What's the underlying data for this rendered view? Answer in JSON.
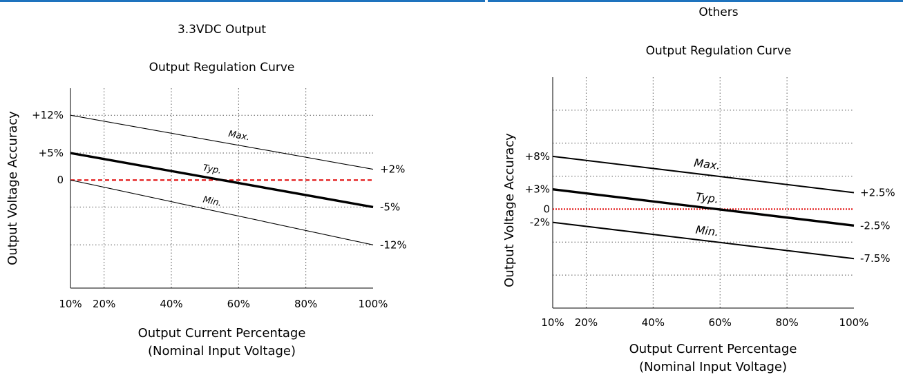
{
  "accent_colors": {
    "top_bar": "#1e73be",
    "zero_line": "#e00000",
    "series": "#000000"
  },
  "chart_data": [
    {
      "type": "line",
      "title": "3.3VDC Output",
      "subtitle": "Output Regulation Curve",
      "xlabel": "Output Current Percentage",
      "xlabel2": "(Nominal Input Voltage)",
      "ylabel": "Output Voltage Accuracy",
      "xlim": [
        10,
        100
      ],
      "ylim": [
        -20,
        17
      ],
      "grid": true,
      "x_ticks": [
        {
          "value": 10,
          "label": "10%"
        },
        {
          "value": 20,
          "label": "20%"
        },
        {
          "value": 40,
          "label": "40%"
        },
        {
          "value": 60,
          "label": "60%"
        },
        {
          "value": 80,
          "label": "80%"
        },
        {
          "value": 100,
          "label": "100%"
        }
      ],
      "grid_y": [
        12,
        5,
        -5,
        -12
      ],
      "left_labels": [
        {
          "value": 12,
          "label": "+12%"
        },
        {
          "value": 5,
          "label": "+5%"
        },
        {
          "value": 0,
          "label": "0"
        }
      ],
      "right_labels": [
        {
          "value": 2,
          "label": "+2%"
        },
        {
          "value": -5,
          "label": "-5%"
        },
        {
          "value": -12,
          "label": "-12%"
        }
      ],
      "zero_line": 0,
      "series": [
        {
          "name": "Max.",
          "x": [
            10,
            100
          ],
          "y": [
            12,
            2
          ],
          "weight": "thin"
        },
        {
          "name": "Typ.",
          "x": [
            10,
            100
          ],
          "y": [
            5,
            -5
          ],
          "weight": "thick"
        },
        {
          "name": "Min.",
          "x": [
            10,
            100
          ],
          "y": [
            0,
            -12
          ],
          "weight": "thin"
        }
      ]
    },
    {
      "type": "line",
      "title": "Others",
      "subtitle": "Output Regulation Curve",
      "xlabel": "Output Current Percentage",
      "xlabel2": "(Nominal Input Voltage)",
      "ylabel": "Output Voltage Accuracy",
      "xlim": [
        10,
        100
      ],
      "ylim": [
        -15,
        20
      ],
      "grid": true,
      "x_ticks": [
        {
          "value": 10,
          "label": "10%"
        },
        {
          "value": 20,
          "label": "20%"
        },
        {
          "value": 40,
          "label": "40%"
        },
        {
          "value": 60,
          "label": "60%"
        },
        {
          "value": 80,
          "label": "80%"
        },
        {
          "value": 100,
          "label": "100%"
        }
      ],
      "grid_y": [
        15,
        10,
        5,
        -5,
        -10
      ],
      "left_labels": [
        {
          "value": 8,
          "label": "+8%"
        },
        {
          "value": 3,
          "label": "+3%"
        },
        {
          "value": 0,
          "label": "0"
        },
        {
          "value": -2,
          "label": "-2%"
        }
      ],
      "right_labels": [
        {
          "value": 2.5,
          "label": "+2.5%"
        },
        {
          "value": -2.5,
          "label": "-2.5%"
        },
        {
          "value": -7.5,
          "label": "-7.5%"
        }
      ],
      "zero_line": 0,
      "series": [
        {
          "name": "Max.",
          "x": [
            10,
            100
          ],
          "y": [
            8,
            2.5
          ],
          "weight": "medium"
        },
        {
          "name": "Typ.",
          "x": [
            10,
            100
          ],
          "y": [
            3,
            -2.5
          ],
          "weight": "thick"
        },
        {
          "name": "Min.",
          "x": [
            10,
            100
          ],
          "y": [
            -2,
            -7.5
          ],
          "weight": "medium"
        }
      ]
    }
  ]
}
